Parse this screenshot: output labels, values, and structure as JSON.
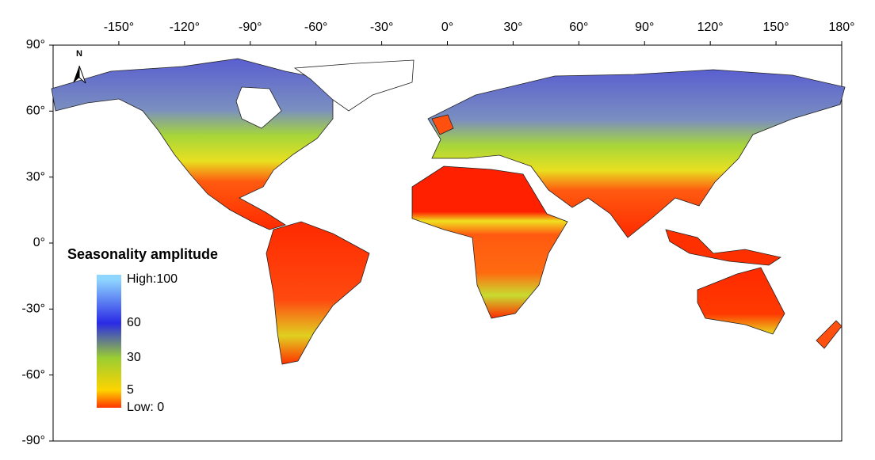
{
  "map": {
    "lon_ticks": [
      {
        "value": -150,
        "label": "-150°"
      },
      {
        "value": -120,
        "label": "-120°"
      },
      {
        "value": -90,
        "label": "-90°"
      },
      {
        "value": -60,
        "label": "-60°"
      },
      {
        "value": -30,
        "label": "-30°"
      },
      {
        "value": 0,
        "label": "0°"
      },
      {
        "value": 30,
        "label": "30°"
      },
      {
        "value": 60,
        "label": "60°"
      },
      {
        "value": 90,
        "label": "90°"
      },
      {
        "value": 120,
        "label": "120°"
      },
      {
        "value": 150,
        "label": "150°"
      },
      {
        "value": 180,
        "label": "180°"
      }
    ],
    "lat_ticks": [
      {
        "value": 90,
        "label": "90°"
      },
      {
        "value": 60,
        "label": "60°"
      },
      {
        "value": 30,
        "label": "30°"
      },
      {
        "value": 0,
        "label": "0°"
      },
      {
        "value": -30,
        "label": "-30°"
      },
      {
        "value": -60,
        "label": "-60°"
      },
      {
        "value": -90,
        "label": "-90°"
      }
    ],
    "north_label": "N",
    "legend": {
      "title": "Seasonality amplitude",
      "stops": [
        {
          "value": 100,
          "label": "High:100",
          "color": "#8fd6ff"
        },
        {
          "value": 60,
          "label": "60",
          "color": "#2a2ae6"
        },
        {
          "value": 30,
          "label": "30",
          "color": "#9acd32"
        },
        {
          "value": 5,
          "label": "5",
          "color": "#ffd400"
        },
        {
          "value": 0,
          "label": "Low: 0",
          "color": "#ff3300"
        }
      ]
    }
  }
}
